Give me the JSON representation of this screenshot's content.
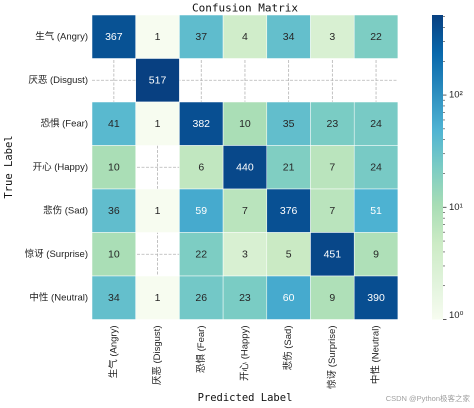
{
  "chart_data": {
    "type": "heatmap",
    "title": "Confusion Matrix",
    "xlabel": "Predicted Label",
    "ylabel": "True Label",
    "x_categories": [
      "生气 (Angry)",
      "厌恶 (Disgust)",
      "恐惧 (Fear)",
      "开心 (Happy)",
      "悲伤 (Sad)",
      "惊讶 (Surprise)",
      "中性 (Neutral)"
    ],
    "y_categories": [
      "生气 (Angry)",
      "厌恶 (Disgust)",
      "恐惧 (Fear)",
      "开心 (Happy)",
      "悲伤 (Sad)",
      "惊讶 (Surprise)",
      "中性 (Neutral)"
    ],
    "values": [
      [
        367,
        1,
        37,
        4,
        34,
        3,
        22
      ],
      [
        null,
        517,
        null,
        null,
        null,
        null,
        null
      ],
      [
        41,
        1,
        382,
        10,
        35,
        23,
        24
      ],
      [
        10,
        null,
        6,
        440,
        21,
        7,
        24
      ],
      [
        36,
        1,
        59,
        7,
        376,
        7,
        51
      ],
      [
        10,
        null,
        22,
        3,
        5,
        451,
        9
      ],
      [
        34,
        1,
        26,
        23,
        60,
        9,
        390
      ]
    ],
    "colorbar": {
      "scale": "log",
      "range": [
        1,
        517
      ],
      "ticks": [
        1,
        10,
        100
      ],
      "tick_labels": [
        "10⁰",
        "10¹",
        "10²"
      ],
      "colors": [
        "#f7fcf0",
        "#e0f3db",
        "#ccebc5",
        "#a8ddb5",
        "#7bccc4",
        "#4eb3d3",
        "#2b8cbe",
        "#0868ac",
        "#084081"
      ]
    },
    "grid": true
  },
  "watermark": "CSDN @Python极客之家"
}
